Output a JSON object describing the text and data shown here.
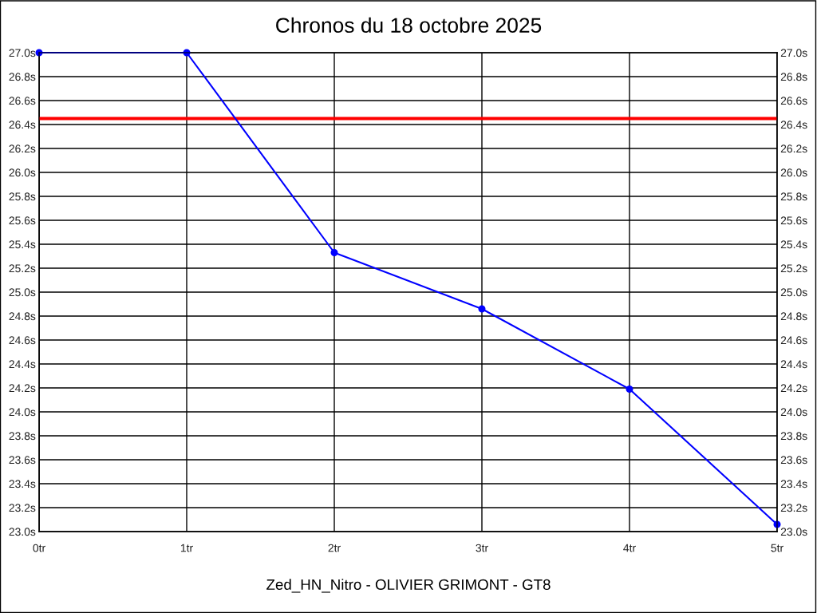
{
  "chart_data": {
    "type": "line",
    "title": "Chronos du 18 octobre 2025",
    "xlabel": "Zed_HN_Nitro - OLIVIER GRIMONT - GT8",
    "x": [
      0,
      1,
      2,
      3,
      4,
      5
    ],
    "series": [
      {
        "color": "#0000ff",
        "values": [
          27.0,
          27.0,
          25.33,
          24.86,
          24.19,
          23.06
        ]
      }
    ],
    "xlim": [
      0,
      5
    ],
    "xticks": [
      {
        "value": 0,
        "label": "0tr"
      },
      {
        "value": 1,
        "label": "1tr"
      },
      {
        "value": 2,
        "label": "2tr"
      },
      {
        "value": 3,
        "label": "3tr"
      },
      {
        "value": 4,
        "label": "4tr"
      },
      {
        "value": 5,
        "label": "5tr"
      }
    ],
    "ylim": [
      23.0,
      27.0
    ],
    "yticks": [
      {
        "value": 23.0,
        "label": "23.0s"
      },
      {
        "value": 23.2,
        "label": "23.2s"
      },
      {
        "value": 23.4,
        "label": "23.4s"
      },
      {
        "value": 23.6,
        "label": "23.6s"
      },
      {
        "value": 23.8,
        "label": "23.8s"
      },
      {
        "value": 24.0,
        "label": "24.0s"
      },
      {
        "value": 24.2,
        "label": "24.2s"
      },
      {
        "value": 24.4,
        "label": "24.4s"
      },
      {
        "value": 24.6,
        "label": "24.6s"
      },
      {
        "value": 24.8,
        "label": "24.8s"
      },
      {
        "value": 25.0,
        "label": "25.0s"
      },
      {
        "value": 25.2,
        "label": "25.2s"
      },
      {
        "value": 25.4,
        "label": "25.4s"
      },
      {
        "value": 25.6,
        "label": "25.6s"
      },
      {
        "value": 25.8,
        "label": "25.8s"
      },
      {
        "value": 26.0,
        "label": "26.0s"
      },
      {
        "value": 26.2,
        "label": "26.2s"
      },
      {
        "value": 26.4,
        "label": "26.4s"
      },
      {
        "value": 26.6,
        "label": "26.6s"
      },
      {
        "value": 26.8,
        "label": "26.8s"
      },
      {
        "value": 27.0,
        "label": "27.0s"
      }
    ],
    "y2lim": [
      23.0,
      27.0
    ],
    "y2ticks": [
      {
        "value": 23.0,
        "label": "23.0s"
      },
      {
        "value": 23.2,
        "label": "23.2s"
      },
      {
        "value": 23.4,
        "label": "23.4s"
      },
      {
        "value": 23.6,
        "label": "23.6s"
      },
      {
        "value": 23.8,
        "label": "23.8s"
      },
      {
        "value": 24.0,
        "label": "24.0s"
      },
      {
        "value": 24.2,
        "label": "24.2s"
      },
      {
        "value": 24.4,
        "label": "24.4s"
      },
      {
        "value": 24.6,
        "label": "24.6s"
      },
      {
        "value": 24.8,
        "label": "24.8s"
      },
      {
        "value": 25.0,
        "label": "25.0s"
      },
      {
        "value": 25.2,
        "label": "25.2s"
      },
      {
        "value": 25.4,
        "label": "25.4s"
      },
      {
        "value": 25.6,
        "label": "25.6s"
      },
      {
        "value": 25.8,
        "label": "25.8s"
      },
      {
        "value": 26.0,
        "label": "26.0s"
      },
      {
        "value": 26.2,
        "label": "26.2s"
      },
      {
        "value": 26.4,
        "label": "26.4s"
      },
      {
        "value": 26.6,
        "label": "26.6s"
      },
      {
        "value": 26.8,
        "label": "26.8s"
      },
      {
        "value": 27.0,
        "label": "27.0s"
      }
    ],
    "ref_lines": [
      {
        "axis": "y",
        "value": 26.45,
        "color": "#ff0000",
        "line_style": "solid"
      }
    ],
    "grid": true,
    "marker": "circle",
    "line_style": "solid"
  }
}
